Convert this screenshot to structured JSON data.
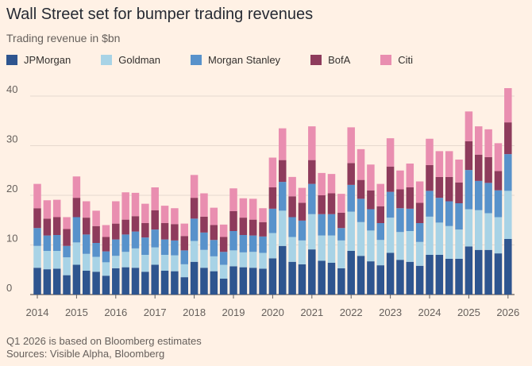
{
  "title": "Wall Street set for bumper trading revenues",
  "subtitle": "Trading revenue in $bn",
  "footnote": "Q1 2026 is based on Bloomberg estimates",
  "sources": "Sources: Visible Alpha, Bloomberg",
  "chart_data": {
    "type": "bar",
    "stacked": true,
    "title": "Wall Street set for bumper trading revenues",
    "ylabel": "Trading revenue in $bn",
    "xlabel": "",
    "ylim": [
      0,
      40
    ],
    "yticks": [
      0,
      10,
      20,
      30,
      40
    ],
    "grid": true,
    "legend": "top",
    "x_tick_labels": [
      {
        "label": "2014",
        "index": 0
      },
      {
        "label": "2015",
        "index": 4
      },
      {
        "label": "2016",
        "index": 8
      },
      {
        "label": "2017",
        "index": 12
      },
      {
        "label": "2018",
        "index": 16
      },
      {
        "label": "2019",
        "index": 20
      },
      {
        "label": "2020",
        "index": 24
      },
      {
        "label": "2021",
        "index": 28
      },
      {
        "label": "2022",
        "index": 32
      },
      {
        "label": "2023",
        "index": 36
      },
      {
        "label": "2024",
        "index": 40
      },
      {
        "label": "2025",
        "index": 44
      },
      {
        "label": "2026",
        "index": 48
      }
    ],
    "categories": [
      "Q1 2014",
      "Q2 2014",
      "Q3 2014",
      "Q4 2014",
      "Q1 2015",
      "Q2 2015",
      "Q3 2015",
      "Q4 2015",
      "Q1 2016",
      "Q2 2016",
      "Q3 2016",
      "Q4 2016",
      "Q1 2017",
      "Q2 2017",
      "Q3 2017",
      "Q4 2017",
      "Q1 2018",
      "Q2 2018",
      "Q3 2018",
      "Q4 2018",
      "Q1 2019",
      "Q2 2019",
      "Q3 2019",
      "Q4 2019",
      "Q1 2020",
      "Q2 2020",
      "Q3 2020",
      "Q4 2020",
      "Q1 2021",
      "Q2 2021",
      "Q3 2021",
      "Q4 2021",
      "Q1 2022",
      "Q2 2022",
      "Q3 2022",
      "Q4 2022",
      "Q1 2023",
      "Q2 2023",
      "Q3 2023",
      "Q4 2023",
      "Q1 2024",
      "Q2 2024",
      "Q3 2024",
      "Q4 2024",
      "Q1 2025",
      "Q2 2025",
      "Q3 2025",
      "Q4 2025",
      "Q1 2026"
    ],
    "series": [
      {
        "name": "JPMorgan",
        "color": "#2E558F",
        "values": [
          5.4,
          5.1,
          5.2,
          3.9,
          6.0,
          4.8,
          4.6,
          3.8,
          5.3,
          5.5,
          5.4,
          4.6,
          6.0,
          4.8,
          4.7,
          3.5,
          6.6,
          5.4,
          4.7,
          3.2,
          5.7,
          5.5,
          5.4,
          5.2,
          7.3,
          9.8,
          6.6,
          6.1,
          9.1,
          6.8,
          6.4,
          5.3,
          8.8,
          7.8,
          6.7,
          5.9,
          8.4,
          7.0,
          6.6,
          5.8,
          8.0,
          8.0,
          7.2,
          7.2,
          9.7,
          9.0,
          9.0,
          8.3,
          11.2
        ]
      },
      {
        "name": "Goldman",
        "color": "#A8D3E6",
        "values": [
          4.4,
          3.7,
          3.6,
          3.6,
          4.5,
          3.4,
          3.0,
          2.7,
          2.5,
          3.1,
          3.9,
          3.4,
          3.5,
          3.2,
          3.2,
          2.6,
          4.2,
          3.6,
          3.0,
          2.8,
          3.2,
          3.0,
          3.2,
          3.2,
          5.1,
          7.1,
          5.0,
          4.8,
          7.1,
          5.1,
          5.5,
          5.6,
          7.9,
          6.8,
          6.2,
          5.1,
          7.1,
          5.6,
          6.2,
          4.8,
          7.7,
          6.5,
          6.6,
          5.9,
          7.5,
          8.0,
          7.4,
          7.3,
          9.7
        ]
      },
      {
        "name": "Morgan Stanley",
        "color": "#5892CB",
        "values": [
          3.6,
          3.1,
          3.2,
          2.3,
          5.1,
          3.9,
          2.8,
          2.2,
          3.3,
          3.5,
          3.4,
          3.5,
          3.6,
          3.1,
          3.0,
          2.8,
          4.5,
          3.5,
          3.3,
          2.6,
          3.9,
          3.5,
          3.3,
          3.3,
          4.9,
          5.8,
          4.0,
          4.0,
          6.1,
          4.3,
          4.3,
          2.5,
          5.4,
          4.7,
          4.3,
          3.4,
          5.2,
          4.8,
          4.5,
          3.8,
          5.2,
          5.0,
          5.0,
          5.3,
          7.9,
          5.9,
          6.1,
          5.4,
          7.4
        ]
      },
      {
        "name": "BofA",
        "color": "#8E3B5C",
        "values": [
          4.0,
          3.4,
          3.6,
          3.4,
          3.9,
          3.4,
          3.4,
          2.9,
          3.2,
          3.0,
          3.1,
          2.9,
          3.9,
          3.3,
          3.3,
          2.9,
          4.2,
          3.2,
          3.0,
          3.0,
          4.0,
          3.5,
          3.2,
          2.9,
          4.3,
          4.4,
          4.2,
          3.6,
          4.8,
          3.8,
          4.2,
          3.1,
          4.4,
          3.8,
          3.8,
          3.4,
          5.1,
          3.8,
          4.3,
          4.1,
          5.2,
          4.2,
          4.9,
          4.2,
          5.8,
          5.3,
          5.2,
          3.9,
          6.4
        ]
      },
      {
        "name": "Citi",
        "color": "#E98EB0",
        "values": [
          4.9,
          3.7,
          3.5,
          2.4,
          4.3,
          3.3,
          3.1,
          2.4,
          4.5,
          5.5,
          4.7,
          3.9,
          4.6,
          3.5,
          3.2,
          2.5,
          4.6,
          4.7,
          3.5,
          2.5,
          4.6,
          3.9,
          4.2,
          2.8,
          6.0,
          6.4,
          3.9,
          3.0,
          6.8,
          4.5,
          3.9,
          3.8,
          7.2,
          6.2,
          5.2,
          4.5,
          5.7,
          3.8,
          4.8,
          4.3,
          5.3,
          5.2,
          5.2,
          4.6,
          6.0,
          5.7,
          5.6,
          5.6,
          6.9
        ]
      }
    ]
  }
}
